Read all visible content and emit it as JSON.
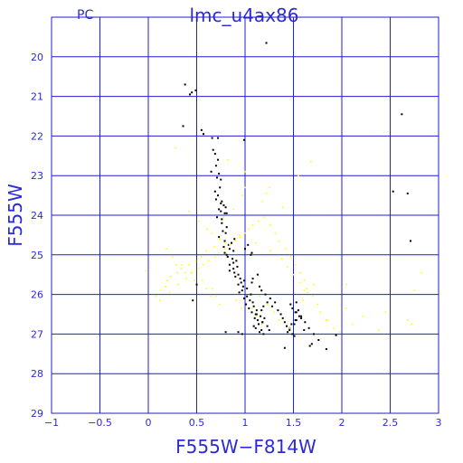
{
  "chart_data": {
    "type": "scatter",
    "title": "lmc_u4ax86",
    "subtitle": "PC",
    "xlabel": "F555W−F814W",
    "ylabel": "F555W",
    "xlim": [
      -1,
      3
    ],
    "ylim": [
      29,
      19
    ],
    "y_inverted": true,
    "grid": true,
    "x_ticks": [
      -1,
      -0.5,
      0,
      0.5,
      1,
      1.5,
      2,
      2.5,
      3
    ],
    "y_ticks": [
      20,
      21,
      22,
      23,
      24,
      25,
      26,
      27,
      28,
      29
    ],
    "x_tick_labels": [
      "−1",
      "−0.5",
      "0",
      "0.5",
      "1",
      "1.5",
      "2",
      "2.5",
      "3"
    ],
    "y_tick_labels": [
      "20",
      "21",
      "22",
      "23",
      "24",
      "25",
      "26",
      "27",
      "28",
      "29"
    ],
    "colors": {
      "frame": "#1f1fd6",
      "grid": "#1f1fd6",
      "text": "#2b2bd6",
      "black_points": "#000000",
      "yellow_points": "#ffff00"
    },
    "series": [
      {
        "color": "black",
        "x": [
          1.22,
          0.38,
          0.43,
          0.45,
          0.49,
          0.36,
          0.55,
          0.57,
          0.66,
          0.72,
          0.99,
          0.67,
          0.69,
          0.72,
          0.7,
          0.65,
          0.73,
          0.71,
          0.75,
          0.74,
          0.69,
          0.72,
          0.7,
          0.76,
          0.75,
          0.78,
          0.8,
          0.73,
          0.75,
          0.79,
          0.81,
          0.71,
          0.76,
          0.76,
          0.81,
          0.77,
          0.8,
          0.73,
          0.89,
          0.79,
          0.86,
          0.83,
          0.78,
          0.84,
          0.88,
          0.79,
          0.81,
          0.82,
          0.87,
          0.91,
          0.88,
          0.84,
          0.92,
          0.88,
          0.84,
          0.89,
          0.93,
          0.9,
          0.95,
          0.99,
          0.96,
          0.93,
          0.98,
          1.02,
          0.97,
          0.94,
          1.06,
          1.02,
          0.99,
          1.05,
          1.08,
          1.01,
          1.09,
          1.04,
          1.12,
          1.07,
          1.11,
          1.16,
          1.1,
          1.13,
          1.18,
          1.14,
          1.09,
          1.11,
          1.17,
          1.15,
          1.19,
          1.13,
          1.08,
          1.07,
          1.15,
          1.17,
          1.21,
          1.26,
          1.23,
          1.19,
          1.17,
          1.12,
          1.2,
          1.18,
          1.23,
          1.25,
          1.31,
          1.28,
          1.34,
          1.37,
          1.39,
          1.41,
          1.43,
          1.46,
          1.49,
          1.51,
          1.44,
          1.46,
          1.48,
          1.53,
          1.56,
          1.52,
          1.49,
          1.47,
          1.55,
          1.58,
          1.62,
          1.66,
          1.71,
          1.76,
          1.67,
          1.69,
          1.41,
          1.52,
          1.53,
          1.58,
          1.51,
          1.61,
          0.93,
          0.97,
          0.8,
          0.46,
          0.5,
          2.62,
          2.68,
          2.53,
          2.71,
          1.84,
          1.94,
          1.53,
          1.06,
          1.07,
          1.0,
          1.03
        ],
        "y": [
          19.65,
          20.7,
          20.95,
          20.9,
          20.85,
          21.75,
          21.85,
          21.95,
          22.05,
          22.05,
          22.1,
          22.35,
          22.45,
          22.6,
          22.75,
          22.9,
          22.95,
          23.05,
          23.1,
          23.3,
          23.4,
          23.5,
          23.6,
          23.65,
          23.7,
          23.75,
          23.8,
          23.85,
          23.9,
          23.95,
          23.95,
          24.05,
          24.1,
          24.2,
          24.3,
          24.4,
          24.45,
          24.55,
          24.6,
          24.65,
          24.7,
          24.75,
          24.8,
          24.85,
          24.9,
          24.95,
          25.0,
          25.05,
          25.1,
          25.15,
          25.2,
          25.25,
          25.3,
          25.35,
          25.4,
          25.45,
          25.5,
          25.55,
          25.6,
          25.65,
          25.7,
          25.75,
          25.8,
          25.85,
          25.9,
          25.95,
          26.0,
          26.05,
          26.1,
          26.15,
          26.2,
          26.25,
          26.3,
          26.35,
          26.4,
          26.45,
          26.5,
          26.55,
          26.6,
          26.65,
          26.7,
          26.75,
          26.8,
          26.85,
          26.9,
          26.95,
          27.0,
          25.5,
          25.6,
          25.7,
          25.8,
          25.9,
          26.0,
          26.1,
          26.2,
          26.3,
          26.4,
          26.5,
          26.6,
          26.7,
          26.8,
          26.9,
          26.2,
          26.3,
          26.4,
          26.5,
          26.6,
          26.7,
          26.8,
          26.9,
          27.0,
          27.05,
          26.95,
          26.85,
          26.75,
          26.65,
          26.55,
          26.45,
          26.35,
          26.25,
          26.4,
          26.55,
          26.7,
          26.85,
          27.0,
          27.15,
          27.3,
          27.25,
          27.35,
          26.65,
          26.45,
          26.6,
          26.75,
          26.9,
          26.95,
          27.0,
          26.95,
          26.15,
          25.75,
          21.45,
          23.45,
          23.4,
          24.65,
          27.38,
          27.03,
          26.2,
          25.0,
          24.95,
          24.85,
          24.75
        ]
      },
      {
        "color": "yellow",
        "x": [
          0.28,
          0.82,
          1.0,
          1.0,
          0.97,
          0.88,
          0.78,
          1.68,
          1.55,
          1.25,
          1.22,
          1.18,
          1.39,
          0.42,
          0.52,
          0.61,
          0.66,
          0.74,
          0.79,
          0.68,
          0.6,
          0.55,
          0.49,
          0.42,
          0.34,
          0.3,
          0.23,
          0.2,
          0.18,
          0.13,
          0.08,
          0.12,
          0.22,
          0.31,
          0.39,
          0.45,
          0.52,
          0.57,
          0.62,
          0.69,
          0.73,
          0.79,
          0.84,
          0.9,
          0.95,
          1.0,
          1.04,
          1.08,
          1.14,
          1.2,
          1.26,
          1.31,
          1.35,
          1.42,
          1.47,
          1.52,
          1.57,
          1.61,
          1.64,
          1.7,
          1.75,
          1.78,
          1.85,
          1.92,
          1.98,
          2.04,
          2.11,
          2.22,
          2.38,
          2.45,
          2.68,
          2.72,
          2.75,
          2.82,
          1.15,
          1.23,
          1.3,
          1.35,
          1.46,
          1.55,
          1.6,
          1.65,
          1.71,
          1.07,
          1.12,
          1.17,
          0.91,
          0.96,
          0.66,
          0.7,
          0.74,
          0.56,
          0.6,
          0.65,
          0.44,
          0.48,
          0.35,
          0.38,
          0.25,
          0.29,
          0.19,
          0.94,
          1.11,
          1.26,
          1.38,
          1.44,
          1.5,
          1.57,
          1.61,
          -0.02,
          1.84,
          2.05
        ],
        "y": [
          22.3,
          22.6,
          22.9,
          23.3,
          23.5,
          23.85,
          24.05,
          22.65,
          23.0,
          23.3,
          23.45,
          23.65,
          23.8,
          23.9,
          24.15,
          24.35,
          24.45,
          24.6,
          24.7,
          24.8,
          24.9,
          25.05,
          25.15,
          25.25,
          25.35,
          25.45,
          25.55,
          25.65,
          25.8,
          25.9,
          26.05,
          26.15,
          25.95,
          25.75,
          25.6,
          25.45,
          25.35,
          25.25,
          25.15,
          25.05,
          24.95,
          24.85,
          24.75,
          24.65,
          24.55,
          24.45,
          24.35,
          24.25,
          24.15,
          24.05,
          24.25,
          24.45,
          24.65,
          24.85,
          25.05,
          25.25,
          25.45,
          25.65,
          25.85,
          26.05,
          26.25,
          26.45,
          26.65,
          26.85,
          26.95,
          26.35,
          26.75,
          26.55,
          26.9,
          26.45,
          26.65,
          26.75,
          25.9,
          25.45,
          26.05,
          26.25,
          26.45,
          26.65,
          26.85,
          27.05,
          26.15,
          25.95,
          25.75,
          26.35,
          26.55,
          26.75,
          26.15,
          26.35,
          25.85,
          26.05,
          26.25,
          25.65,
          25.85,
          26.05,
          25.45,
          25.65,
          25.25,
          25.45,
          25.05,
          25.25,
          24.85,
          24.5,
          24.7,
          24.9,
          25.1,
          25.3,
          25.5,
          25.7,
          25.9,
          25.4,
          26.65,
          25.75
        ]
      }
    ]
  }
}
